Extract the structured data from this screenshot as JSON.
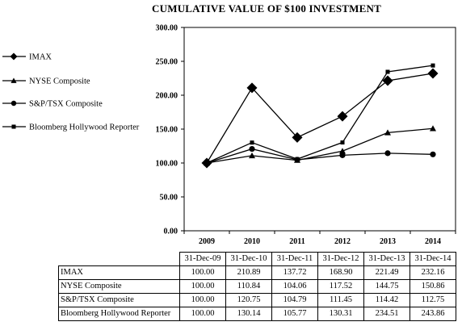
{
  "chart_data": {
    "type": "line",
    "title": "CUMULATIVE VALUE OF $100 INVESTMENT",
    "xlabel": "",
    "ylabel": "",
    "categories": [
      "2009",
      "2010",
      "2011",
      "2012",
      "2013",
      "2014"
    ],
    "ylim": [
      0,
      300
    ],
    "yticks": [
      "0.00",
      "50.00",
      "100.00",
      "150.00",
      "200.00",
      "250.00",
      "300.00"
    ],
    "grid": false,
    "legend_position": "left",
    "series": [
      {
        "name": "IMAX",
        "marker": "diamond",
        "values": [
          100.0,
          210.89,
          137.72,
          168.9,
          221.49,
          232.16
        ]
      },
      {
        "name": "NYSE Composite",
        "marker": "triangle",
        "values": [
          100.0,
          110.84,
          104.06,
          117.52,
          144.75,
          150.86
        ]
      },
      {
        "name": "S&P/TSX Composite",
        "marker": "circle",
        "values": [
          100.0,
          120.75,
          104.79,
          111.45,
          114.42,
          112.75
        ]
      },
      {
        "name": "Bloomberg Hollywood Reporter",
        "marker": "square",
        "values": [
          100.0,
          130.14,
          105.77,
          130.31,
          234.51,
          243.86
        ]
      }
    ]
  },
  "table": {
    "headers": [
      "31-Dec-09",
      "31-Dec-10",
      "31-Dec-11",
      "31-Dec-12",
      "31-Dec-13",
      "31-Dec-14"
    ],
    "rows": [
      {
        "label": "IMAX",
        "cells": [
          "100.00",
          "210.89",
          "137.72",
          "168.90",
          "221.49",
          "232.16"
        ]
      },
      {
        "label": "NYSE Composite",
        "cells": [
          "100.00",
          "110.84",
          "104.06",
          "117.52",
          "144.75",
          "150.86"
        ]
      },
      {
        "label": "S&P/TSX Composite",
        "cells": [
          "100.00",
          "120.75",
          "104.79",
          "111.45",
          "114.42",
          "112.75"
        ]
      },
      {
        "label": "Bloomberg Hollywood Reporter",
        "cells": [
          "100.00",
          "130.14",
          "105.77",
          "130.31",
          "234.51",
          "243.86"
        ]
      }
    ]
  }
}
